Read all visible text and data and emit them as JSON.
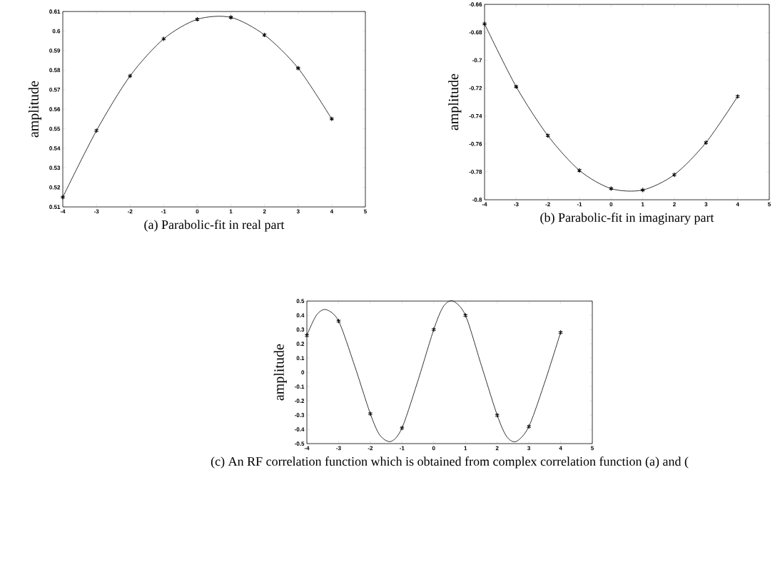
{
  "chart_data": [
    {
      "type": "line",
      "ylabel": "amplitude",
      "annotations": [
        "(a) Parabolic-fit in real part"
      ],
      "xlim": [
        -4,
        5
      ],
      "xticks": [
        -4,
        -3,
        -2,
        -1,
        0,
        1,
        2,
        3,
        4,
        5
      ],
      "ylim": [
        0.51,
        0.61
      ],
      "yticks": [
        0.51,
        0.52,
        0.53,
        0.54,
        0.55,
        0.56,
        0.57,
        0.58,
        0.59,
        0.6,
        0.61
      ],
      "series": [
        {
          "type": "line",
          "color": "#000000",
          "x": [
            -4,
            -3,
            -2,
            -1,
            0,
            1,
            2,
            3,
            4
          ],
          "values": [
            0.515,
            0.549,
            0.577,
            0.596,
            0.606,
            0.607,
            0.598,
            0.581,
            0.555
          ]
        },
        {
          "type": "scatter",
          "color": "#000000",
          "marker": "cross",
          "x": [
            -4,
            -3,
            -2,
            -1,
            0,
            1,
            2,
            3,
            4
          ],
          "values": [
            0.515,
            0.549,
            0.577,
            0.596,
            0.606,
            0.607,
            0.598,
            0.581,
            0.555
          ]
        }
      ]
    },
    {
      "type": "line",
      "ylabel": "amplitude",
      "annotations": [
        "(b) Parabolic-fit in imaginary part"
      ],
      "xlim": [
        -4,
        5
      ],
      "xticks": [
        -4,
        -3,
        -2,
        -1,
        0,
        1,
        2,
        3,
        4,
        5
      ],
      "ylim": [
        -0.8,
        -0.66
      ],
      "yticks": [
        -0.8,
        -0.78,
        -0.76,
        -0.74,
        -0.72,
        -0.7,
        -0.68,
        -0.66
      ],
      "series": [
        {
          "type": "line",
          "color": "#000000",
          "x": [
            -4,
            -3,
            -2,
            -1,
            0,
            1,
            2,
            3,
            4
          ],
          "values": [
            -0.674,
            -0.719,
            -0.754,
            -0.779,
            -0.792,
            -0.793,
            -0.782,
            -0.759,
            -0.726
          ]
        },
        {
          "type": "scatter",
          "color": "#000000",
          "marker": "cross",
          "x": [
            -4,
            -3,
            -2,
            -1,
            0,
            1,
            2,
            3,
            4
          ],
          "values": [
            -0.674,
            -0.719,
            -0.754,
            -0.779,
            -0.792,
            -0.793,
            -0.782,
            -0.759,
            -0.726
          ]
        }
      ]
    },
    {
      "type": "line",
      "ylabel": "amplitude",
      "annotations": [
        "(c) An RF correlation function which is obtained from complex correlation function (a) and ("
      ],
      "xlim": [
        -4,
        5
      ],
      "xticks": [
        -4,
        -3,
        -2,
        -1,
        0,
        1,
        2,
        3,
        4,
        5
      ],
      "ylim": [
        -0.5,
        0.5
      ],
      "yticks": [
        -0.5,
        -0.4,
        -0.3,
        -0.2,
        -0.1,
        0,
        0.1,
        0.2,
        0.3,
        0.4,
        0.5
      ],
      "series": [
        {
          "type": "line",
          "color": "#000000",
          "x": [
            -4,
            -3.7,
            -3.4,
            -3,
            -2.5,
            -2,
            -1.7,
            -1.35,
            -1,
            -0.5,
            0,
            0.3,
            0.6,
            1,
            1.5,
            2,
            2.3,
            2.6,
            3,
            3.5,
            4
          ],
          "values": [
            0.26,
            0.4,
            0.44,
            0.36,
            0.05,
            -0.29,
            -0.44,
            -0.485,
            -0.39,
            -0.06,
            0.3,
            0.46,
            0.5,
            0.4,
            0.05,
            -0.3,
            -0.45,
            -0.485,
            -0.38,
            -0.07,
            0.28
          ]
        },
        {
          "type": "scatter",
          "color": "#000000",
          "marker": "cross",
          "x": [
            -4,
            -3,
            -2,
            -1,
            0,
            1,
            2,
            3,
            4
          ],
          "values": [
            0.26,
            0.36,
            -0.29,
            -0.39,
            0.3,
            0.4,
            -0.3,
            -0.38,
            0.28
          ]
        }
      ]
    }
  ]
}
